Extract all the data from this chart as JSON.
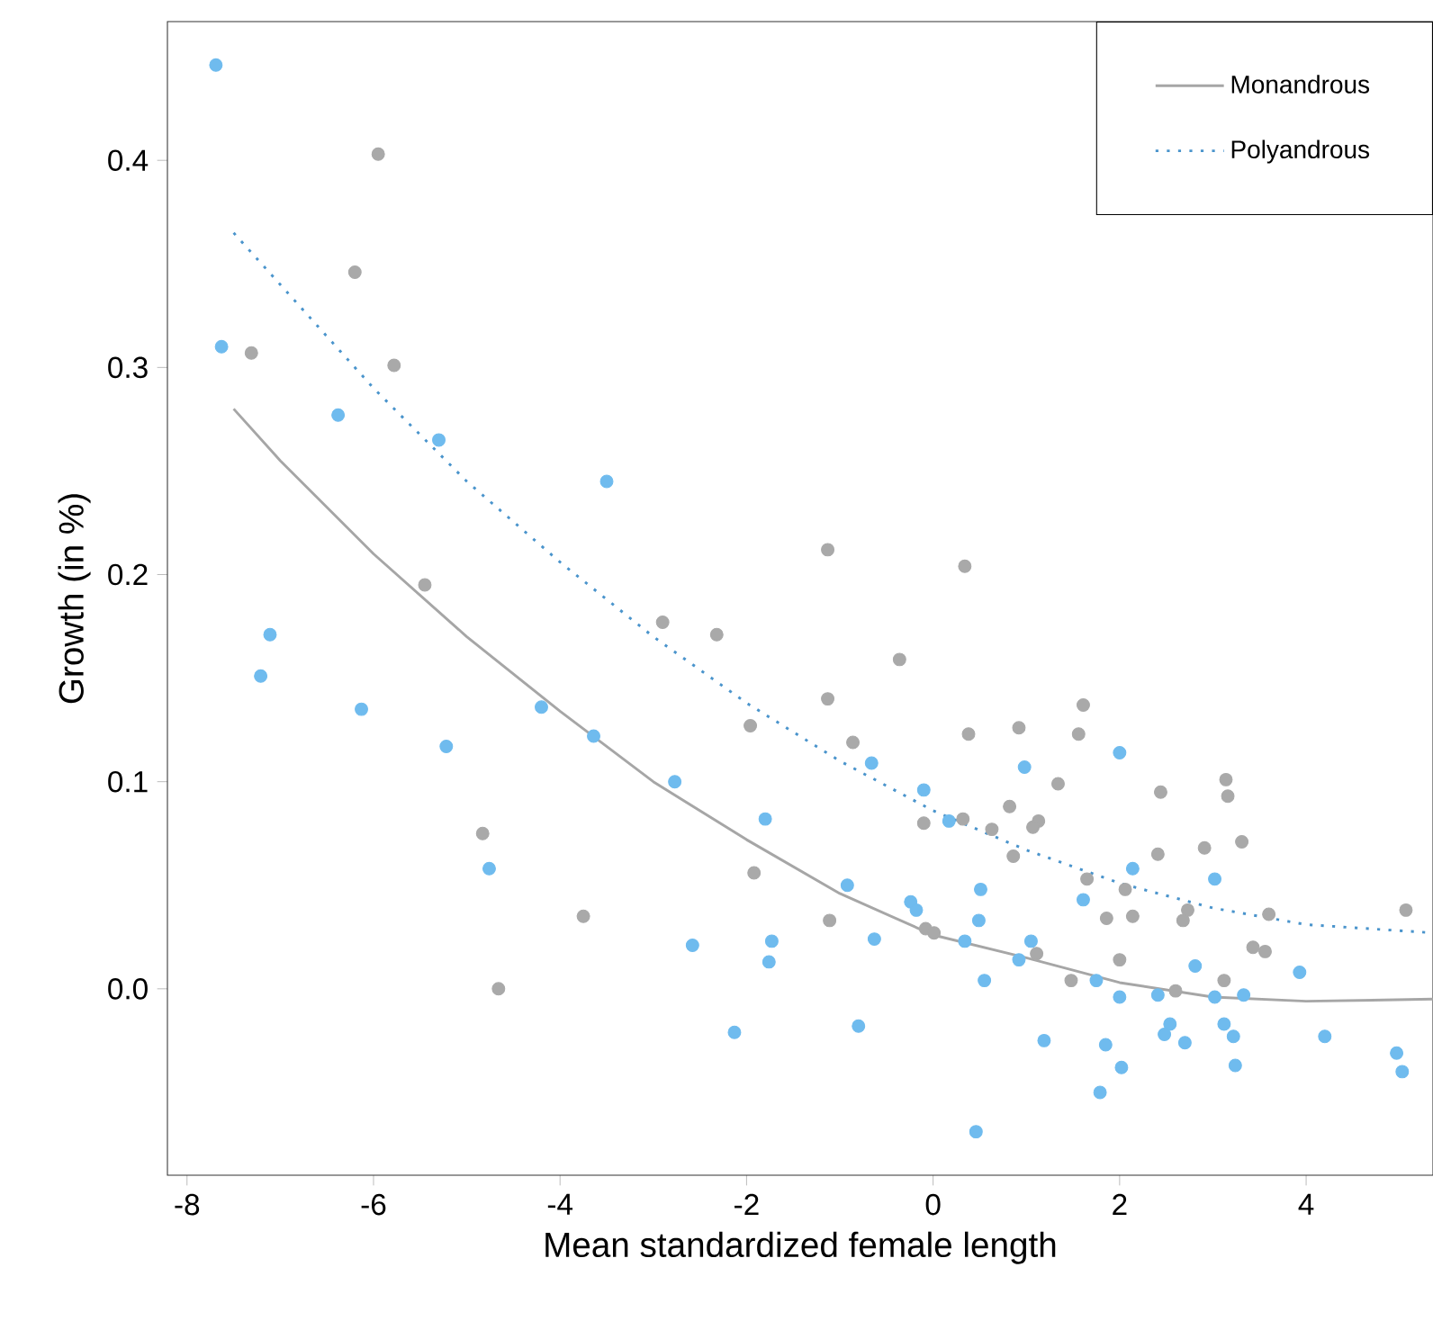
{
  "chart_data": {
    "type": "scatter",
    "xlabel": "Mean standardized female length",
    "ylabel": "Growth (in %)",
    "xlim": [
      -8.21,
      5.36
    ],
    "ylim": [
      -0.09,
      0.467
    ],
    "xticks": [
      -8,
      -6,
      -4,
      -2,
      0,
      2,
      4
    ],
    "yticks": [
      {
        "value": 0,
        "label": "0.0"
      },
      0.1,
      0.2,
      0.3,
      0.4
    ],
    "grid": false,
    "legend": "top right",
    "marker": "circle",
    "series": [
      {
        "name": "Monandrous",
        "type": "line",
        "marker": "none",
        "line_style": "solid",
        "color": "#a6a6a6",
        "x": [
          -7.5,
          -7,
          -6,
          -5,
          -4,
          -3,
          -2,
          -1,
          0,
          1,
          2,
          3,
          4,
          5.36
        ],
        "values": [
          0.28,
          0.255,
          0.21,
          0.17,
          0.134,
          0.1,
          0.072,
          0.046,
          0.026,
          0.015,
          0.003,
          -0.004,
          -0.006,
          -0.005
        ]
      },
      {
        "name": "Polyandrous",
        "type": "line",
        "marker": "none",
        "line_style": "dotted",
        "color": "#4a94cc",
        "x": [
          -7.5,
          -7,
          -6,
          -5,
          -4,
          -3,
          -2,
          -1,
          0,
          1,
          2,
          3,
          4,
          5.36
        ],
        "values": [
          0.365,
          0.34,
          0.29,
          0.245,
          0.206,
          0.17,
          0.138,
          0.11,
          0.086,
          0.067,
          0.051,
          0.039,
          0.031,
          0.027
        ]
      },
      {
        "color": "#a9a9a9",
        "x": [
          -5.95,
          -6.2,
          -7.31,
          -5.78,
          -5.45,
          -4.83,
          -3.75,
          -4.66,
          -1.13,
          0.34,
          -2.9,
          -2.32,
          -0.36,
          -1.13,
          -0.86,
          -1.96,
          0.38,
          -0.1,
          0.32,
          0.63,
          0.82,
          0.86,
          -1.92,
          -1.11,
          -0.08,
          0.01,
          1.61,
          0.92,
          1.56,
          1.34,
          1.13,
          1.07,
          2.44,
          3.14,
          3.16,
          2.41,
          2.91,
          3.31,
          1.65,
          2.06,
          1.86,
          2.14,
          2.73,
          2.68,
          3.6,
          5.07,
          3.43,
          3.56,
          1.11,
          1.48,
          2.0,
          2.6,
          3.12
        ],
        "values": [
          0.403,
          0.346,
          0.307,
          0.301,
          0.195,
          0.075,
          0.035,
          0.0,
          0.212,
          0.204,
          0.177,
          0.171,
          0.159,
          0.14,
          0.119,
          0.127,
          0.123,
          0.08,
          0.082,
          0.077,
          0.088,
          0.064,
          0.056,
          0.033,
          0.029,
          0.027,
          0.137,
          0.126,
          0.123,
          0.099,
          0.081,
          0.078,
          0.095,
          0.101,
          0.093,
          0.065,
          0.068,
          0.071,
          0.053,
          0.048,
          0.034,
          0.035,
          0.038,
          0.033,
          0.036,
          0.038,
          0.02,
          0.018,
          0.017,
          0.004,
          0.014,
          -0.001,
          0.004
        ]
      },
      {
        "color": "#6fbbee",
        "x": [
          -7.69,
          -7.63,
          -6.38,
          -5.3,
          -3.5,
          -7.11,
          -7.21,
          -6.13,
          -5.22,
          -4.2,
          -3.64,
          -4.76,
          -2.77,
          -1.8,
          -0.66,
          -0.1,
          0.17,
          -2.58,
          -1.73,
          -1.76,
          -2.13,
          -0.92,
          -0.63,
          -0.8,
          -0.24,
          -0.18,
          0.34,
          0.51,
          0.49,
          0.55,
          0.92,
          0.46,
          0.98,
          2.0,
          2.14,
          1.61,
          3.02,
          1.05,
          1.75,
          2.0,
          2.41,
          2.81,
          3.02,
          3.33,
          3.93,
          1.19,
          1.85,
          2.02,
          1.79,
          2.54,
          2.48,
          2.7,
          3.12,
          3.22,
          3.24,
          4.2,
          4.97,
          5.03
        ],
        "values": [
          0.446,
          0.31,
          0.277,
          0.265,
          0.245,
          0.171,
          0.151,
          0.135,
          0.117,
          0.136,
          0.122,
          0.058,
          0.1,
          0.082,
          0.109,
          0.096,
          0.081,
          0.021,
          0.023,
          0.013,
          -0.021,
          0.05,
          0.024,
          -0.018,
          0.042,
          0.038,
          0.023,
          0.048,
          0.033,
          0.004,
          0.014,
          -0.069,
          0.107,
          0.114,
          0.058,
          0.043,
          0.053,
          0.023,
          0.004,
          -0.004,
          -0.003,
          0.011,
          -0.004,
          -0.003,
          0.008,
          -0.025,
          -0.027,
          -0.038,
          -0.05,
          -0.017,
          -0.022,
          -0.026,
          -0.017,
          -0.023,
          -0.037,
          -0.023,
          -0.031,
          -0.04
        ]
      }
    ]
  }
}
